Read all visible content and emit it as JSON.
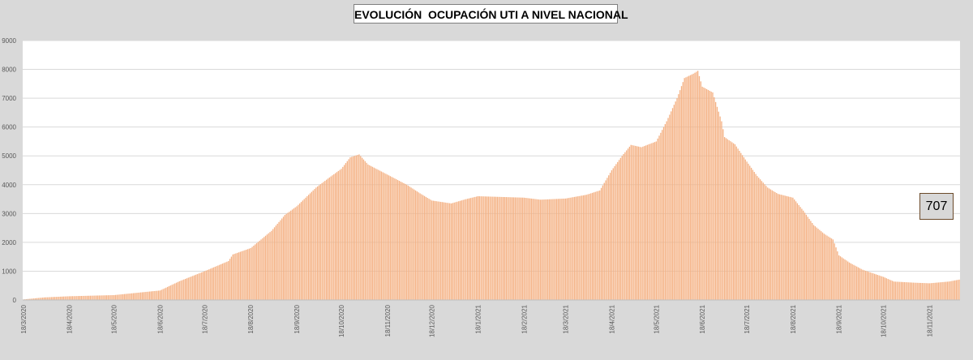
{
  "chart_data": {
    "type": "bar",
    "title": "EVOLUCIÓN  OCUPACIÓN UTI A NIVEL NACIONAL",
    "xlabel": "",
    "ylabel": "",
    "ylim": [
      0,
      9000
    ],
    "yticks": [
      0,
      1000,
      2000,
      3000,
      4000,
      5000,
      6000,
      7000,
      8000,
      9000
    ],
    "grid": true,
    "legend": "none",
    "bar_color": "#f4b183",
    "date_start": "2020-03-18",
    "date_end": "2021-12-08",
    "x_tick_labels": [
      "18/3/2020",
      "18/4/2020",
      "18/5/2020",
      "18/6/2020",
      "18/7/2020",
      "18/8/2020",
      "18/9/2020",
      "18/10/2020",
      "18/11/2020",
      "18/12/2020",
      "18/1/2021",
      "18/2/2021",
      "18/3/2021",
      "18/4/2021",
      "18/5/2021",
      "18/6/2021",
      "18/7/2021",
      "18/8/2021",
      "18/9/2021",
      "18/10/2021",
      "18/11/2021"
    ],
    "key_points": [
      {
        "date": "2020-03-18",
        "value": 20
      },
      {
        "date": "2020-04-01",
        "value": 90
      },
      {
        "date": "2020-04-18",
        "value": 130
      },
      {
        "date": "2020-05-18",
        "value": 170
      },
      {
        "date": "2020-06-18",
        "value": 330
      },
      {
        "date": "2020-07-01",
        "value": 650
      },
      {
        "date": "2020-07-18",
        "value": 1000
      },
      {
        "date": "2020-08-03",
        "value": 1350
      },
      {
        "date": "2020-08-06",
        "value": 1580
      },
      {
        "date": "2020-08-18",
        "value": 1800
      },
      {
        "date": "2020-09-01",
        "value": 2400
      },
      {
        "date": "2020-09-10",
        "value": 2950
      },
      {
        "date": "2020-09-18",
        "value": 3250
      },
      {
        "date": "2020-10-01",
        "value": 3900
      },
      {
        "date": "2020-10-10",
        "value": 4250
      },
      {
        "date": "2020-10-18",
        "value": 4550
      },
      {
        "date": "2020-10-24",
        "value": 4950
      },
      {
        "date": "2020-10-30",
        "value": 5050
      },
      {
        "date": "2020-11-05",
        "value": 4700
      },
      {
        "date": "2020-11-18",
        "value": 4350
      },
      {
        "date": "2020-12-01",
        "value": 4000
      },
      {
        "date": "2020-12-10",
        "value": 3700
      },
      {
        "date": "2020-12-18",
        "value": 3450
      },
      {
        "date": "2020-12-31",
        "value": 3350
      },
      {
        "date": "2021-01-10",
        "value": 3500
      },
      {
        "date": "2021-01-18",
        "value": 3600
      },
      {
        "date": "2021-02-18",
        "value": 3550
      },
      {
        "date": "2021-03-01",
        "value": 3480
      },
      {
        "date": "2021-03-18",
        "value": 3520
      },
      {
        "date": "2021-04-01",
        "value": 3650
      },
      {
        "date": "2021-04-10",
        "value": 3800
      },
      {
        "date": "2021-04-18",
        "value": 4500
      },
      {
        "date": "2021-04-25",
        "value": 5000
      },
      {
        "date": "2021-05-01",
        "value": 5380
      },
      {
        "date": "2021-05-08",
        "value": 5300
      },
      {
        "date": "2021-05-18",
        "value": 5500
      },
      {
        "date": "2021-05-25",
        "value": 6200
      },
      {
        "date": "2021-06-01",
        "value": 7000
      },
      {
        "date": "2021-06-06",
        "value": 7700
      },
      {
        "date": "2021-06-12",
        "value": 7850
      },
      {
        "date": "2021-06-15",
        "value": 7950
      },
      {
        "date": "2021-06-18",
        "value": 7400
      },
      {
        "date": "2021-06-25",
        "value": 7200
      },
      {
        "date": "2021-07-01",
        "value": 6200
      },
      {
        "date": "2021-07-03",
        "value": 5650
      },
      {
        "date": "2021-07-10",
        "value": 5400
      },
      {
        "date": "2021-07-18",
        "value": 4800
      },
      {
        "date": "2021-07-25",
        "value": 4300
      },
      {
        "date": "2021-08-01",
        "value": 3900
      },
      {
        "date": "2021-08-08",
        "value": 3680
      },
      {
        "date": "2021-08-18",
        "value": 3550
      },
      {
        "date": "2021-08-25",
        "value": 3100
      },
      {
        "date": "2021-09-01",
        "value": 2600
      },
      {
        "date": "2021-09-08",
        "value": 2300
      },
      {
        "date": "2021-09-14",
        "value": 2100
      },
      {
        "date": "2021-09-18",
        "value": 1550
      },
      {
        "date": "2021-09-25",
        "value": 1300
      },
      {
        "date": "2021-10-04",
        "value": 1050
      },
      {
        "date": "2021-10-18",
        "value": 800
      },
      {
        "date": "2021-10-25",
        "value": 640
      },
      {
        "date": "2021-11-08",
        "value": 600
      },
      {
        "date": "2021-11-18",
        "value": 580
      },
      {
        "date": "2021-12-01",
        "value": 640
      },
      {
        "date": "2021-12-08",
        "value": 707
      }
    ]
  },
  "annotation": {
    "latest_value": "707"
  }
}
